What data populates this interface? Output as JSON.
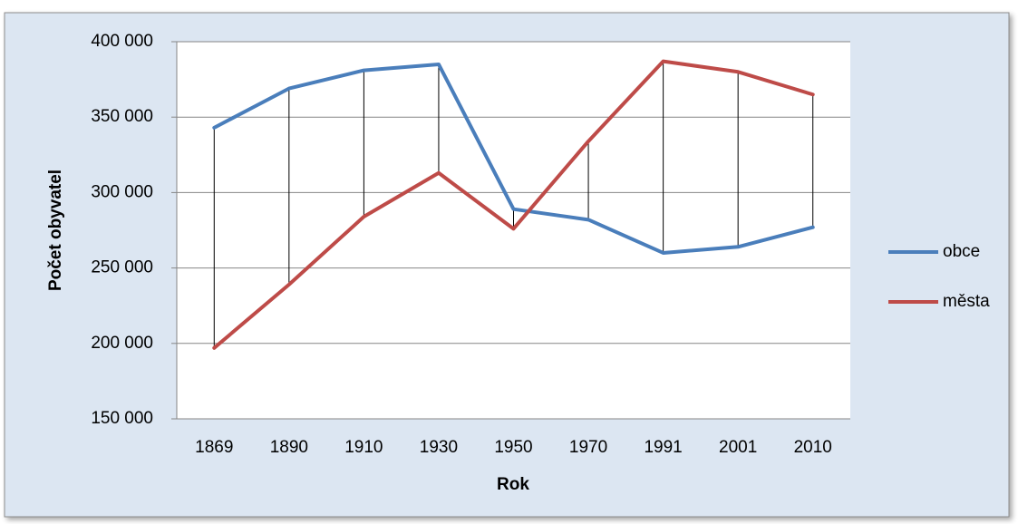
{
  "chart_data": {
    "type": "line",
    "x_label": "Rok",
    "y_label": "Počet obyvatel",
    "categories": [
      "1869",
      "1890",
      "1910",
      "1930",
      "1950",
      "1970",
      "1991",
      "2001",
      "2010"
    ],
    "series": [
      {
        "name": "obce",
        "color": "#4a7ebb",
        "values": [
          343000,
          369000,
          381000,
          385000,
          289000,
          282000,
          260000,
          264000,
          277000
        ]
      },
      {
        "name": "města",
        "color": "#be4b48",
        "values": [
          197000,
          239000,
          284000,
          313000,
          276000,
          334000,
          387000,
          380000,
          365000
        ]
      }
    ],
    "ylim": [
      150000,
      400000
    ],
    "yticks": [
      {
        "value": 150000,
        "label": "150 000"
      },
      {
        "value": 200000,
        "label": "200 000"
      },
      {
        "value": 250000,
        "label": "250 000"
      },
      {
        "value": 300000,
        "label": "300 000"
      },
      {
        "value": 350000,
        "label": "350 000"
      },
      {
        "value": 400000,
        "label": "400 000"
      }
    ],
    "grid": true,
    "high_low_lines": true,
    "legend_position": "right"
  }
}
